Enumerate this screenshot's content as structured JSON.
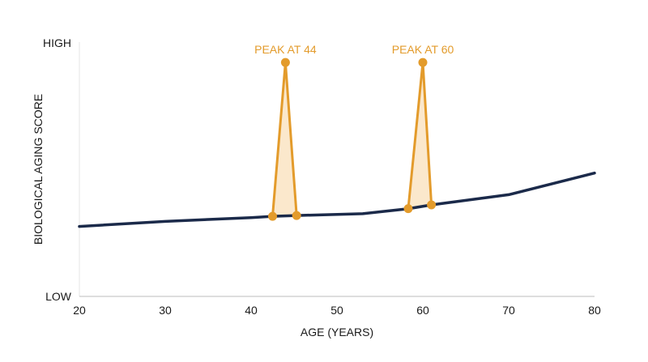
{
  "chart_data": {
    "type": "line",
    "xlabel": "AGE (YEARS)",
    "ylabel": "BIOLOGICAL AGING SCORE",
    "xlim": [
      20,
      80
    ],
    "ylim": [
      0,
      100
    ],
    "x_ticks": [
      "20",
      "30",
      "40",
      "50",
      "60",
      "70",
      "80"
    ],
    "y_tick_labels": {
      "top": "HIGH",
      "bottom": "LOW"
    },
    "grid": false,
    "colors": {
      "line": "#1b2a4a",
      "peak": "#e39b2b",
      "peak_fill": "#fbe8cc"
    },
    "series": [
      {
        "x": [
          20,
          30,
          40,
          42.5,
          45.3,
          53,
          58.3,
          61,
          70,
          80
        ],
        "y": [
          27.5,
          29.5,
          31,
          31.5,
          31.8,
          32.5,
          34.5,
          36,
          40,
          48.5
        ]
      }
    ],
    "peaks": [
      {
        "label": "PEAK AT 44",
        "x": 44,
        "y": 92,
        "base_left": {
          "x": 42.5,
          "y": 31.5
        },
        "base_right": {
          "x": 45.3,
          "y": 31.8
        }
      },
      {
        "label": "PEAK AT 60",
        "x": 60,
        "y": 92,
        "base_left": {
          "x": 58.3,
          "y": 34.5
        },
        "base_right": {
          "x": 61,
          "y": 36
        }
      }
    ]
  }
}
